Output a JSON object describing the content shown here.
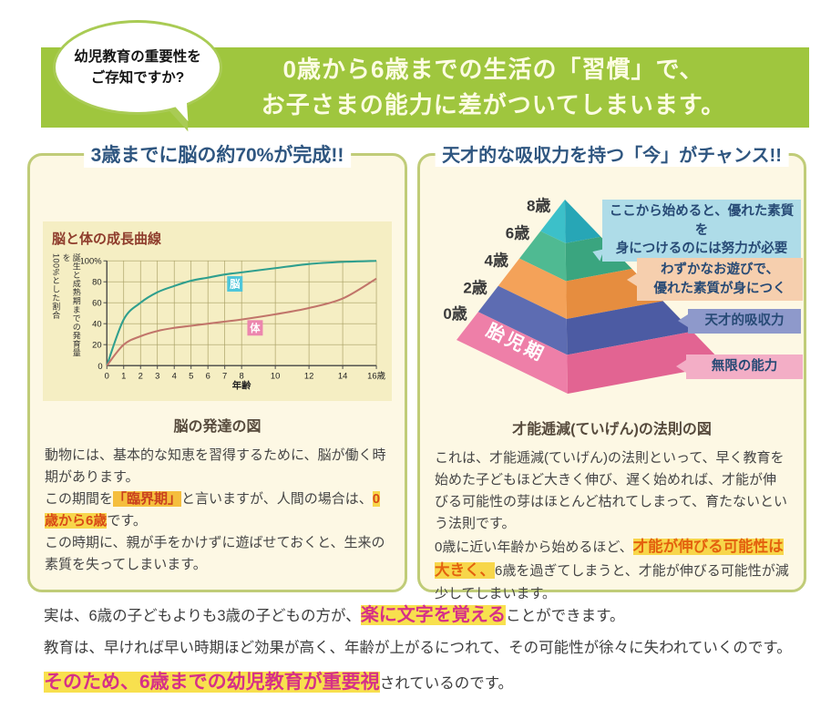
{
  "header": {
    "bubble_lines": [
      "幼児教育の重要性を",
      "ご存知ですか?"
    ],
    "banner_lines": [
      "0歳から6歳までの生活の「習慣」で、",
      "お子さまの能力に差がついてしまいます。"
    ],
    "banner_bg": "#9fc63e",
    "banner_text_color": "#fdfce3"
  },
  "left_box": {
    "title": "3歳までに脳の約70%が完成!!",
    "caption": "脳の発達の図",
    "paragraphs": [
      [
        {
          "t": "動物には、基本的な知恵を習得するために、脳が働く時期があります。"
        }
      ],
      [
        {
          "t": "この期間を"
        },
        {
          "t": "「臨界期」",
          "h": "crit"
        },
        {
          "t": "と言いますが、人間の場合は、"
        },
        {
          "t": "0歳から6歳",
          "h": "age"
        },
        {
          "t": "です。"
        }
      ],
      [
        {
          "t": "この時期に、親が手をかけずに遊ばせておくと、生来の素質を失ってしまいます。"
        }
      ]
    ]
  },
  "right_box": {
    "title": "天才的な吸収力を持つ「今」がチャンス!!",
    "caption": "才能逓減(ていげん)の法則の図",
    "pyramid": {
      "age_labels": [
        "8歳",
        "6歳",
        "4歳",
        "2歳",
        "0歳"
      ],
      "bottom_label": "胎児期",
      "layers": [
        {
          "front": "#3cc0c9",
          "side": "#27a6b6"
        },
        {
          "front": "#4fba92",
          "side": "#3aa57f"
        },
        {
          "front": "#f4a259",
          "side": "#e68d3f"
        },
        {
          "front": "#5d6cb2",
          "side": "#4c5ba3"
        },
        {
          "front": "#ee7fa8",
          "side": "#e26492"
        }
      ],
      "callouts": [
        {
          "lines": [
            "ここから始めると、優れた素質を",
            "身につけるのには努力が必要"
          ],
          "bg": "#aedce8"
        },
        {
          "lines": [
            "わずかなお遊びで、",
            "優れた素質が身につく"
          ],
          "bg": "#f6cfae"
        },
        {
          "lines": [
            "天才的吸収力"
          ],
          "bg": "#8e99cb"
        },
        {
          "lines": [
            "無限の能力"
          ],
          "bg": "#f3aec6"
        }
      ]
    },
    "paragraphs": [
      [
        {
          "t": "これは、才能逓減(ていげん)の法則といって、早く教育を始めた子どもほど大きく伸び、遅く始めれば、才能が伸びる可能性の芽はほとんど枯れてしまって、育たないという法則です。"
        }
      ],
      [
        {
          "t": "0歳に近い年齢から始めるほど、"
        },
        {
          "t": "才能が伸びる可能性は大きく、",
          "h": "big"
        },
        {
          "t": "6歳を過ぎてしまうと、才能が伸びる可能性が減少してしまいます。"
        }
      ]
    ]
  },
  "footer": {
    "lines": [
      [
        {
          "t": "実は、6歳の子どもよりも3歳の子どもの方が、"
        },
        {
          "t": "楽に文字を覚える",
          "h": "mag"
        },
        {
          "t": "ことができます。"
        }
      ],
      [
        {
          "t": "教育は、早ければ早い時期ほど効果が高く、年齢が上がるにつれて、その可能性が徐々に失われていくのです。"
        }
      ],
      [
        {
          "t": "そのため、6歳までの幼児教育が重要視",
          "h": "mag"
        },
        {
          "t": "されているのです。"
        }
      ]
    ]
  },
  "chart_data": {
    "type": "line",
    "title": "脳と体の成長曲線",
    "xlabel": "年齢",
    "ylabel": "誕生と成熟期までの発育量を100%とした割合",
    "ylabel_columns": [
      "誕生と成熟期までの発育量を",
      "100%とした割合"
    ],
    "x": [
      0,
      1,
      2,
      3,
      4,
      5,
      6,
      7,
      8,
      10,
      12,
      14,
      16
    ],
    "x_tick_labels": [
      "0",
      "1",
      "2",
      "3",
      "4",
      "5",
      "6",
      "7",
      "8",
      "10",
      "12",
      "14",
      "16歳"
    ],
    "y_ticks": [
      0,
      20,
      40,
      60,
      80,
      100
    ],
    "y_tick_labels": [
      "0",
      "20",
      "40",
      "60",
      "80",
      "100%"
    ],
    "xlim": [
      0,
      16
    ],
    "ylim": [
      0,
      100
    ],
    "grid": true,
    "legend_position": "on-curve-badges",
    "series": [
      {
        "name": "脳",
        "color": "#2f9f8e",
        "label_bg": "#4fc6da",
        "badge_at": {
          "x": 7.6,
          "y": 78
        },
        "values": [
          0,
          44,
          60,
          70,
          76,
          81,
          84,
          87,
          89,
          93,
          97,
          99,
          100
        ]
      },
      {
        "name": "体",
        "color": "#c1756a",
        "label_bg": "#ec86ae",
        "badge_at": {
          "x": 8.8,
          "y": 36
        },
        "values": [
          0,
          20,
          28,
          33,
          36,
          38,
          40,
          42,
          44,
          49,
          55,
          64,
          83
        ]
      }
    ]
  },
  "colors": {
    "box_border": "#c0cc78",
    "box_bg": "#fdf8e4",
    "panel_title_color": "#2f5680",
    "chart_panel_bg": "#f5eec3",
    "grid_color": "#a89f63",
    "hl_yellow": "#f7d64a",
    "hl_orange": "#f5be3d",
    "hl_red_text": "#c9401f",
    "hl_magenta_text": "#d63087"
  }
}
